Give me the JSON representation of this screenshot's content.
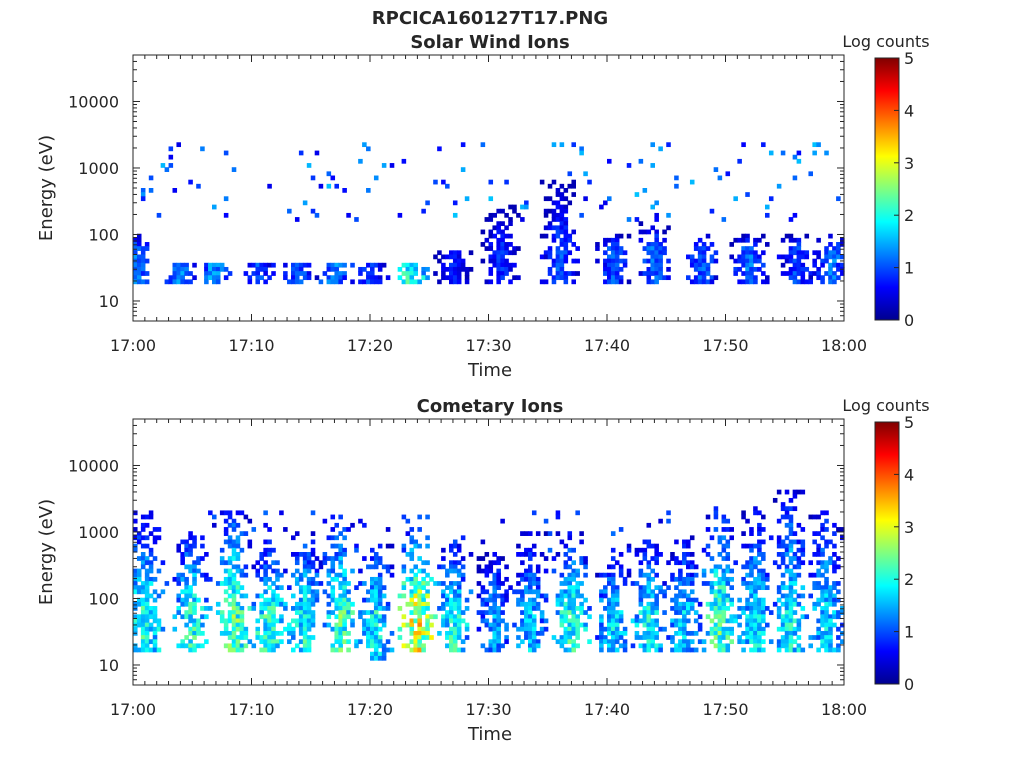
{
  "figure": {
    "title": "RPCICA160127T17.PNG",
    "colormap": [
      "#00008f",
      "#0000ff",
      "#00ffff",
      "#ffff00",
      "#ff0000",
      "#800000"
    ]
  },
  "chart_data": [
    {
      "type": "heatmap",
      "title": "Solar Wind Ions",
      "xlabel": "Time",
      "ylabel": "Energy (eV)",
      "xlim": [
        "17:00",
        "18:00"
      ],
      "xtick_labels": [
        "17:00",
        "17:10",
        "17:20",
        "17:30",
        "17:40",
        "17:50",
        "18:00"
      ],
      "y_scale": "log",
      "ylim": [
        5,
        50000
      ],
      "ytick_labels": [
        "10",
        "100",
        "1000",
        "10000"
      ],
      "colorbar": {
        "label": "Log counts",
        "range": [
          0,
          5
        ],
        "tick_labels": [
          "0",
          "1",
          "2",
          "3",
          "4",
          "5"
        ]
      },
      "grid": false,
      "bursts": [
        {
          "t": 0.2,
          "lo": 18,
          "hi": 100,
          "peak": 1.5
        },
        {
          "t": 4.0,
          "lo": 18,
          "hi": 40,
          "peak": 1.6
        },
        {
          "t": 7.0,
          "lo": 18,
          "hi": 40,
          "peak": 1.8
        },
        {
          "t": 10.5,
          "lo": 18,
          "hi": 40,
          "peak": 1.3
        },
        {
          "t": 14.0,
          "lo": 18,
          "hi": 40,
          "peak": 1.4
        },
        {
          "t": 17.0,
          "lo": 18,
          "hi": 40,
          "peak": 1.6
        },
        {
          "t": 20.0,
          "lo": 18,
          "hi": 40,
          "peak": 1.2
        },
        {
          "t": 23.5,
          "lo": 18,
          "hi": 40,
          "peak": 2.6
        },
        {
          "t": 27.0,
          "lo": 18,
          "hi": 60,
          "peak": 1.0
        },
        {
          "t": 31.0,
          "lo": 18,
          "hi": 300,
          "peak": 1.1
        },
        {
          "t": 36.0,
          "lo": 18,
          "hi": 700,
          "peak": 1.3
        },
        {
          "t": 40.5,
          "lo": 18,
          "hi": 100,
          "peak": 1.3
        },
        {
          "t": 44.0,
          "lo": 18,
          "hi": 150,
          "peak": 1.5
        },
        {
          "t": 48.0,
          "lo": 18,
          "hi": 100,
          "peak": 1.4
        },
        {
          "t": 52.0,
          "lo": 18,
          "hi": 100,
          "peak": 1.5
        },
        {
          "t": 56.0,
          "lo": 18,
          "hi": 100,
          "peak": 1.3
        },
        {
          "t": 59.0,
          "lo": 18,
          "hi": 100,
          "peak": 1.5
        }
      ],
      "scatter": {
        "lo": 150,
        "hi": 2500,
        "peak": 1.6
      }
    },
    {
      "type": "heatmap",
      "title": "Cometary Ions",
      "xlabel": "Time",
      "ylabel": "Energy (eV)",
      "xlim": [
        "17:00",
        "18:00"
      ],
      "xtick_labels": [
        "17:00",
        "17:10",
        "17:20",
        "17:30",
        "17:40",
        "17:50",
        "18:00"
      ],
      "y_scale": "log",
      "ylim": [
        5,
        50000
      ],
      "ytick_labels": [
        "10",
        "100",
        "1000",
        "10000"
      ],
      "colorbar": {
        "label": "Log counts",
        "range": [
          0,
          5
        ],
        "tick_labels": [
          "0",
          "1",
          "2",
          "3",
          "4",
          "5"
        ]
      },
      "grid": false,
      "bursts": [
        {
          "t": 1.0,
          "lo": 15,
          "hi": 2000,
          "peak": 2.6
        },
        {
          "t": 5.0,
          "lo": 15,
          "hi": 1200,
          "peak": 2.6
        },
        {
          "t": 8.5,
          "lo": 15,
          "hi": 2000,
          "peak": 3.0
        },
        {
          "t": 11.5,
          "lo": 15,
          "hi": 600,
          "peak": 2.7
        },
        {
          "t": 14.5,
          "lo": 15,
          "hi": 1000,
          "peak": 2.5
        },
        {
          "t": 17.5,
          "lo": 15,
          "hi": 1800,
          "peak": 2.8
        },
        {
          "t": 20.5,
          "lo": 12,
          "hi": 700,
          "peak": 2.4
        },
        {
          "t": 24.0,
          "lo": 15,
          "hi": 1200,
          "peak": 3.8
        },
        {
          "t": 27.0,
          "lo": 15,
          "hi": 700,
          "peak": 2.5
        },
        {
          "t": 30.5,
          "lo": 15,
          "hi": 500,
          "peak": 1.8
        },
        {
          "t": 33.5,
          "lo": 15,
          "hi": 1000,
          "peak": 2.0
        },
        {
          "t": 37.0,
          "lo": 15,
          "hi": 1000,
          "peak": 2.6
        },
        {
          "t": 40.5,
          "lo": 15,
          "hi": 500,
          "peak": 2.2
        },
        {
          "t": 43.5,
          "lo": 15,
          "hi": 800,
          "peak": 2.4
        },
        {
          "t": 46.5,
          "lo": 15,
          "hi": 900,
          "peak": 2.1
        },
        {
          "t": 49.5,
          "lo": 15,
          "hi": 2500,
          "peak": 2.9
        },
        {
          "t": 52.5,
          "lo": 15,
          "hi": 2500,
          "peak": 2.3
        },
        {
          "t": 55.5,
          "lo": 15,
          "hi": 4500,
          "peak": 2.4
        },
        {
          "t": 58.5,
          "lo": 15,
          "hi": 2500,
          "peak": 2.2
        }
      ],
      "scatter": {
        "lo": 100,
        "hi": 2000,
        "peak": 1.2
      }
    }
  ]
}
